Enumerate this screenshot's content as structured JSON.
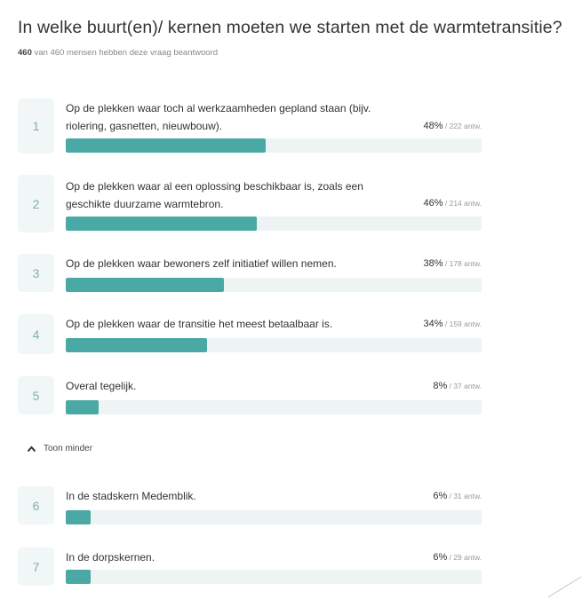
{
  "question": {
    "title": "In welke buurt(en)/ kernen moeten we starten met de warmtetransitie?",
    "responded_count": "460",
    "responded_text": " van 460 mensen hebben deze vraag beantwoord"
  },
  "answers": [
    {
      "number": "1",
      "label": "Op de plekken waar toch al werkzaamheden gepland staan (bijv. riolering, gasnetten, nieuwbouw).",
      "percent_text": "48%",
      "count_text": " / 222 antw.",
      "percent": 48
    },
    {
      "number": "2",
      "label": "Op de plekken waar al een oplossing beschikbaar is, zoals een geschikte duurzame warmtebron.",
      "percent_text": "46%",
      "count_text": " / 214 antw.",
      "percent": 46
    },
    {
      "number": "3",
      "label": "Op de plekken waar bewoners zelf initiatief willen nemen.",
      "percent_text": "38%",
      "count_text": " / 178 antw.",
      "percent": 38
    },
    {
      "number": "4",
      "label": "Op de plekken waar de transitie het meest betaalbaar is.",
      "percent_text": "34%",
      "count_text": " / 159 antw.",
      "percent": 34
    },
    {
      "number": "5",
      "label": "Overal tegelijk.",
      "percent_text": "8%",
      "count_text": " / 37 antw.",
      "percent": 8
    },
    {
      "number": "6",
      "label": "In de stadskern Medemblik.",
      "percent_text": "6%",
      "count_text": " / 31 antw.",
      "percent": 6
    },
    {
      "number": "7",
      "label": "In de dorpskernen.",
      "percent_text": "6%",
      "count_text": " / 29 antw.",
      "percent": 6
    }
  ],
  "toggle": {
    "label": "Toon minder",
    "icon": "chevron-up-icon"
  },
  "colors": {
    "bar_fill": "#4aa9a5",
    "bar_track": "#eef3f3",
    "number_box": "#f1f6f6",
    "number_text": "#7fb0ae"
  }
}
